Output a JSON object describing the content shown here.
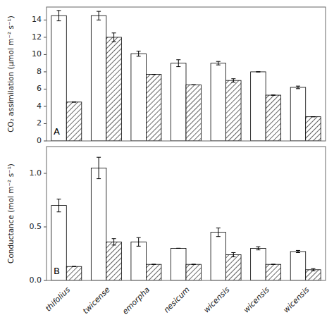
{
  "chart_data": [
    {
      "type": "bar",
      "ylabel": "CO₂ assimilation (μmol m⁻² s⁻¹)",
      "annotation": "A",
      "categories": [
        null,
        null,
        null,
        null,
        null,
        null,
        null
      ],
      "series": [
        {
          "color": "#ffffff",
          "values": [
            14.5,
            14.5,
            10.1,
            9.0,
            9.0,
            8.0,
            6.2
          ],
          "errors": [
            0.6,
            0.5,
            0.3,
            0.4,
            0.2,
            0.0,
            0.15
          ]
        },
        {
          "color": "#ffffff",
          "values": [
            4.5,
            12.0,
            7.7,
            6.5,
            7.0,
            5.3,
            2.8
          ],
          "errors": [
            0.0,
            0.5,
            0.0,
            0.0,
            0.2,
            0.0,
            0.0
          ]
        }
      ],
      "ylim": [
        0,
        15.5
      ],
      "yticks": [
        0,
        2,
        4,
        6,
        8,
        10,
        12,
        14
      ],
      "grid": false
    },
    {
      "type": "bar",
      "ylabel": "Conductance (mol m⁻² s⁻¹)",
      "annotation": "B",
      "categories": [
        "thifolius",
        "twicense",
        "emorpha",
        "nesicum",
        "wicensis",
        "wicensis",
        "wicensis"
      ],
      "series": [
        {
          "color": "#ffffff",
          "values": [
            0.7,
            1.05,
            0.36,
            0.3,
            0.45,
            0.3,
            0.27
          ],
          "errors": [
            0.06,
            0.1,
            0.04,
            0.0,
            0.04,
            0.015,
            0.01
          ]
        },
        {
          "color": "#ffffff",
          "values": [
            0.13,
            0.36,
            0.15,
            0.15,
            0.24,
            0.15,
            0.1
          ],
          "errors": [
            0.0,
            0.03,
            0.0,
            0.0,
            0.02,
            0.0,
            0.01
          ]
        }
      ],
      "ylim": [
        0,
        1.25
      ],
      "yticks": [
        {
          "value": 0,
          "label": "0.0"
        },
        0.5,
        {
          "value": 1,
          "label": "1.0"
        }
      ],
      "grid": false
    }
  ]
}
